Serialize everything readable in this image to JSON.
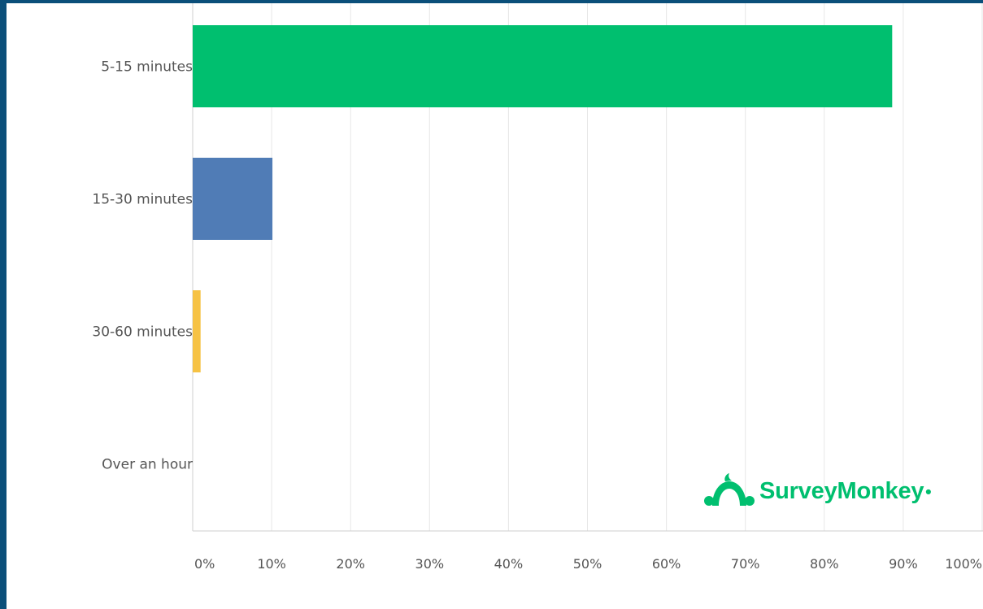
{
  "chart_data": {
    "type": "bar",
    "orientation": "horizontal",
    "categories": [
      "5-15 minutes",
      "15-30 minutes",
      "30-60 minutes",
      "Over an hour"
    ],
    "values": [
      88.6,
      10.1,
      1.0,
      0
    ],
    "colors": [
      "#00bf6f",
      "#507cb6",
      "#f6c244",
      "#cccccc"
    ],
    "xlim": [
      0,
      100
    ],
    "x_ticks": [
      "0%",
      "10%",
      "20%",
      "30%",
      "40%",
      "50%",
      "60%",
      "70%",
      "80%",
      "90%",
      "100%"
    ],
    "grid": true
  },
  "branding": {
    "logo_text": "SurveyMonkey",
    "logo_color": "#00bf6f"
  },
  "theme": {
    "frame_color": "#0b4f7a"
  }
}
